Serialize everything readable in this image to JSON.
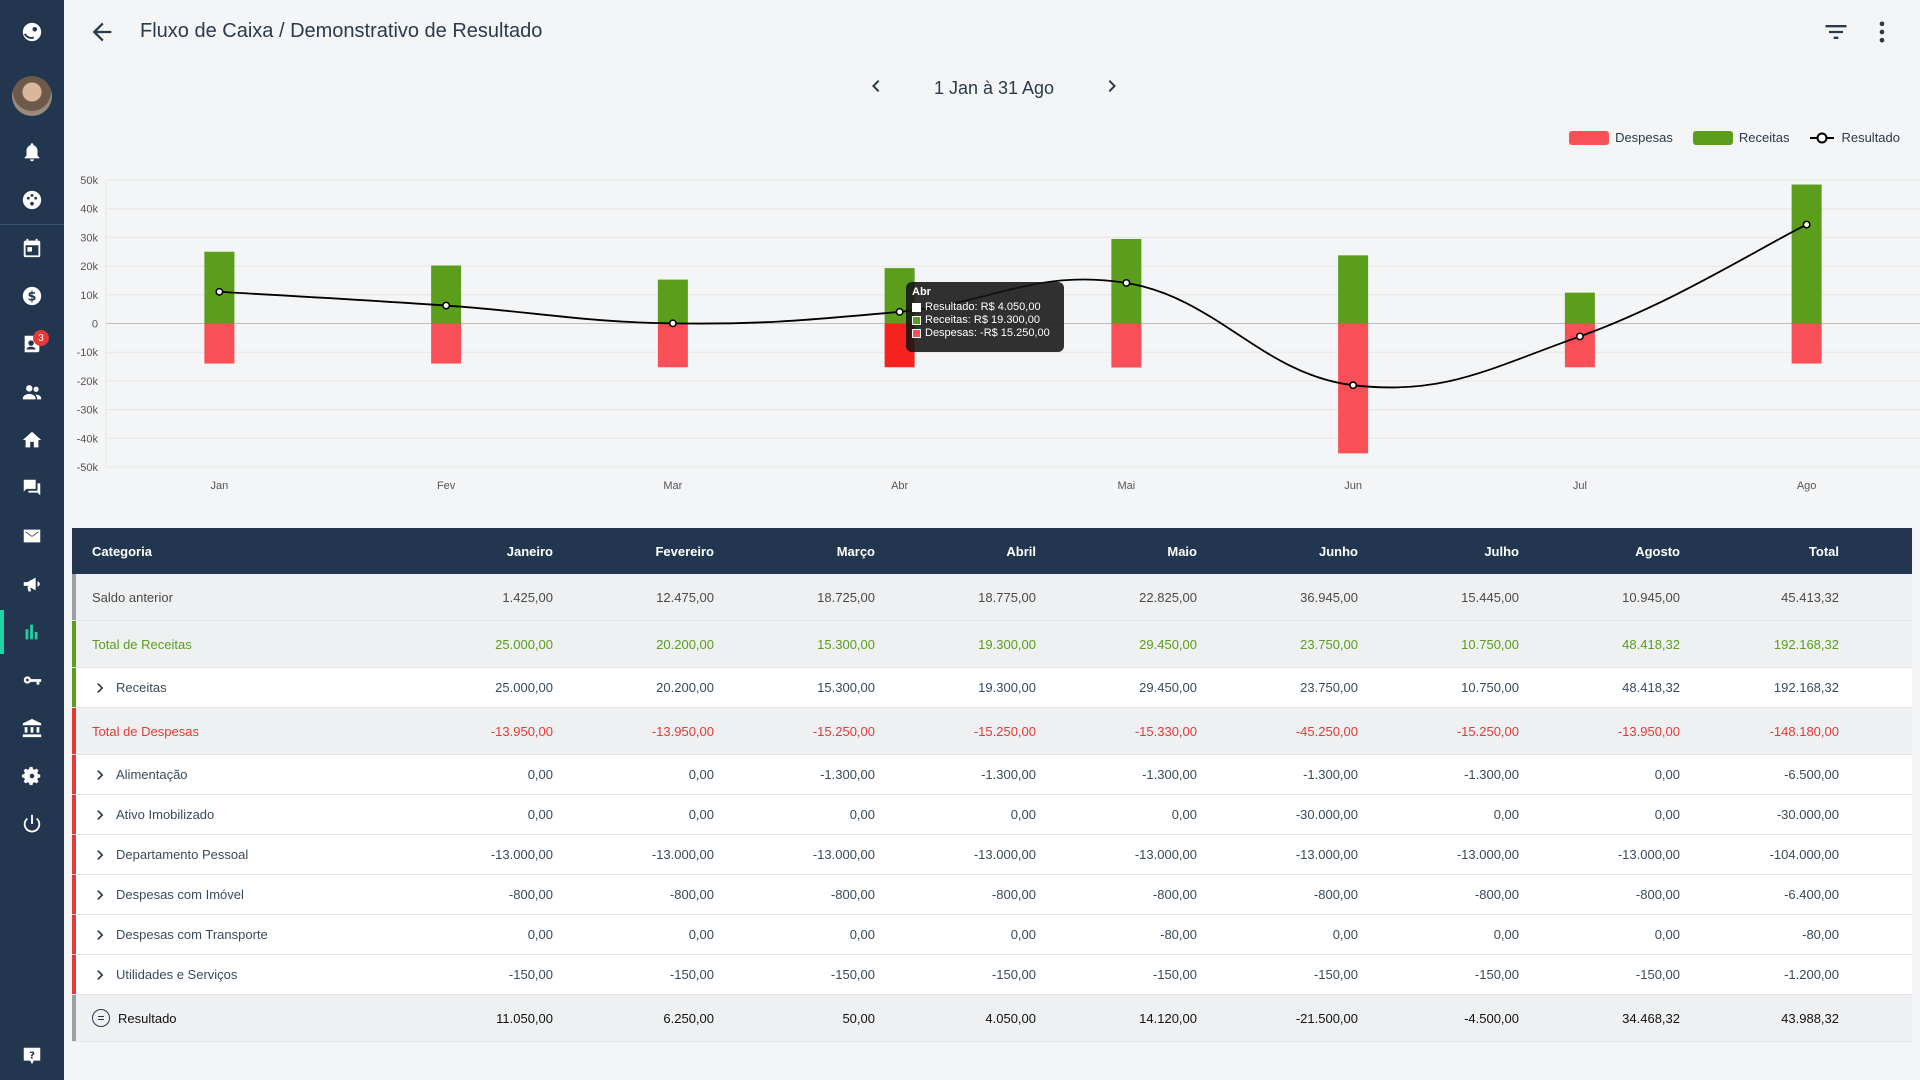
{
  "header": {
    "title": "Fluxo de Caixa / Demonstrativo de Resultado"
  },
  "period": {
    "label": "1 Jan à 31 Ago"
  },
  "sidebar": {
    "notification_badge": "3"
  },
  "colors": {
    "despesas": "#f94f56",
    "receitas": "#5a9e1b",
    "header_bg": "#22364f",
    "sidebar_bg": "#22364f",
    "active_accent": "#20d3a5"
  },
  "legend": [
    "Despesas",
    "Receitas",
    "Resultado"
  ],
  "chart_data": {
    "type": "bar",
    "categories": [
      "Jan",
      "Fev",
      "Mar",
      "Abr",
      "Mai",
      "Jun",
      "Jul",
      "Ago"
    ],
    "ylim": [
      -50000,
      50000
    ],
    "yticks": [
      "50k",
      "40k",
      "30k",
      "20k",
      "10k",
      "0",
      "-10k",
      "-20k",
      "-30k",
      "-40k",
      "-50k"
    ],
    "series": [
      {
        "name": "Despesas",
        "type": "bar",
        "values": [
          -13950,
          -13950,
          -15250,
          -15250,
          -15330,
          -45250,
          -15250,
          -13950
        ]
      },
      {
        "name": "Receitas",
        "type": "bar",
        "values": [
          25000,
          20200,
          15300,
          19300,
          29450,
          23750,
          10750,
          48418.32
        ]
      },
      {
        "name": "Resultado",
        "type": "line",
        "values": [
          11050,
          6250,
          50,
          4050,
          14120,
          -21500,
          -4500,
          34468.32
        ]
      }
    ],
    "tooltip": {
      "title": "Abr",
      "lines": [
        "Resultado: R$ 4.050,00",
        "Receitas: R$ 19.300,00",
        "Despesas: -R$ 15.250,00"
      ]
    }
  },
  "table": {
    "headers": [
      "Categoria",
      "Janeiro",
      "Fevereiro",
      "Março",
      "Abril",
      "Maio",
      "Junho",
      "Julho",
      "Agosto",
      "Total"
    ],
    "rows": [
      {
        "label": "Saldo anterior",
        "kind": "saldo",
        "values": [
          "1.425,00",
          "12.475,00",
          "18.725,00",
          "18.775,00",
          "22.825,00",
          "36.945,00",
          "15.445,00",
          "10.945,00",
          "45.413,32"
        ]
      },
      {
        "label": "Total de Receitas",
        "kind": "total-rec",
        "values": [
          "25.000,00",
          "20.200,00",
          "15.300,00",
          "19.300,00",
          "29.450,00",
          "23.750,00",
          "10.750,00",
          "48.418,32",
          "192.168,32"
        ]
      },
      {
        "label": "Receitas",
        "kind": "sub-rec",
        "values": [
          "25.000,00",
          "20.200,00",
          "15.300,00",
          "19.300,00",
          "29.450,00",
          "23.750,00",
          "10.750,00",
          "48.418,32",
          "192.168,32"
        ]
      },
      {
        "label": "Total de Despesas",
        "kind": "total-desp",
        "values": [
          "-13.950,00",
          "-13.950,00",
          "-15.250,00",
          "-15.250,00",
          "-15.330,00",
          "-45.250,00",
          "-15.250,00",
          "-13.950,00",
          "-148.180,00"
        ]
      },
      {
        "label": "Alimentação",
        "kind": "sub-desp",
        "values": [
          "0,00",
          "0,00",
          "-1.300,00",
          "-1.300,00",
          "-1.300,00",
          "-1.300,00",
          "-1.300,00",
          "0,00",
          "-6.500,00"
        ]
      },
      {
        "label": "Ativo Imobilizado",
        "kind": "sub-desp",
        "values": [
          "0,00",
          "0,00",
          "0,00",
          "0,00",
          "0,00",
          "-30.000,00",
          "0,00",
          "0,00",
          "-30.000,00"
        ]
      },
      {
        "label": "Departamento Pessoal",
        "kind": "sub-desp",
        "values": [
          "-13.000,00",
          "-13.000,00",
          "-13.000,00",
          "-13.000,00",
          "-13.000,00",
          "-13.000,00",
          "-13.000,00",
          "-13.000,00",
          "-104.000,00"
        ]
      },
      {
        "label": "Despesas com Imóvel",
        "kind": "sub-desp",
        "values": [
          "-800,00",
          "-800,00",
          "-800,00",
          "-800,00",
          "-800,00",
          "-800,00",
          "-800,00",
          "-800,00",
          "-6.400,00"
        ]
      },
      {
        "label": "Despesas com Transporte",
        "kind": "sub-desp",
        "values": [
          "0,00",
          "0,00",
          "0,00",
          "0,00",
          "-80,00",
          "0,00",
          "0,00",
          "0,00",
          "-80,00"
        ]
      },
      {
        "label": "Utilidades e Serviços",
        "kind": "sub-desp",
        "values": [
          "-150,00",
          "-150,00",
          "-150,00",
          "-150,00",
          "-150,00",
          "-150,00",
          "-150,00",
          "-150,00",
          "-1.200,00"
        ]
      },
      {
        "label": "Resultado",
        "kind": "resultado",
        "values": [
          "11.050,00",
          "6.250,00",
          "50,00",
          "4.050,00",
          "14.120,00",
          "-21.500,00",
          "-4.500,00",
          "34.468,32",
          "43.988,32"
        ]
      }
    ]
  }
}
